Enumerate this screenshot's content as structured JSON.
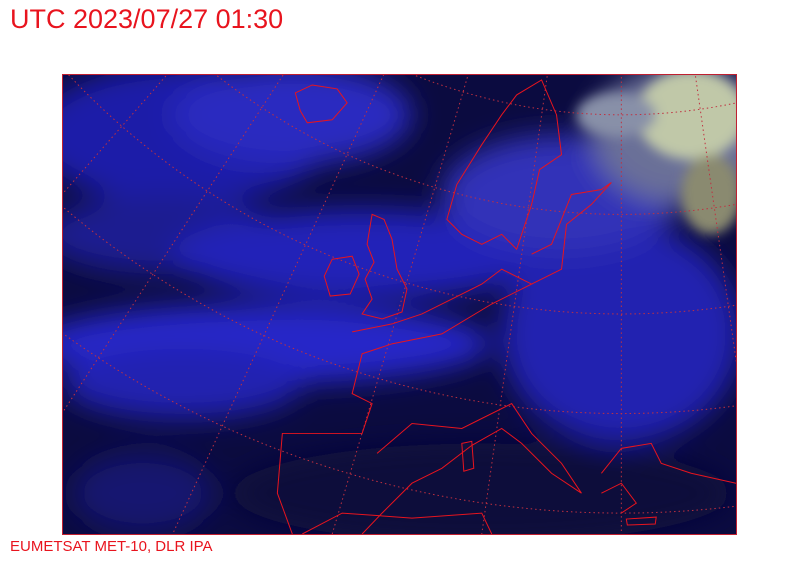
{
  "title": "UTC 2023/07/27 01:30",
  "credit": "EUMETSAT MET-10, DLR IPA",
  "map": {
    "region": "Europe",
    "imagery": "satellite cloud composite",
    "colors": {
      "background": "#0a0a3a",
      "cloud": "#2a2ad8",
      "coastline": "#e8141e",
      "grid": "#c03040",
      "high_cloud": "#b8c8a0"
    }
  }
}
